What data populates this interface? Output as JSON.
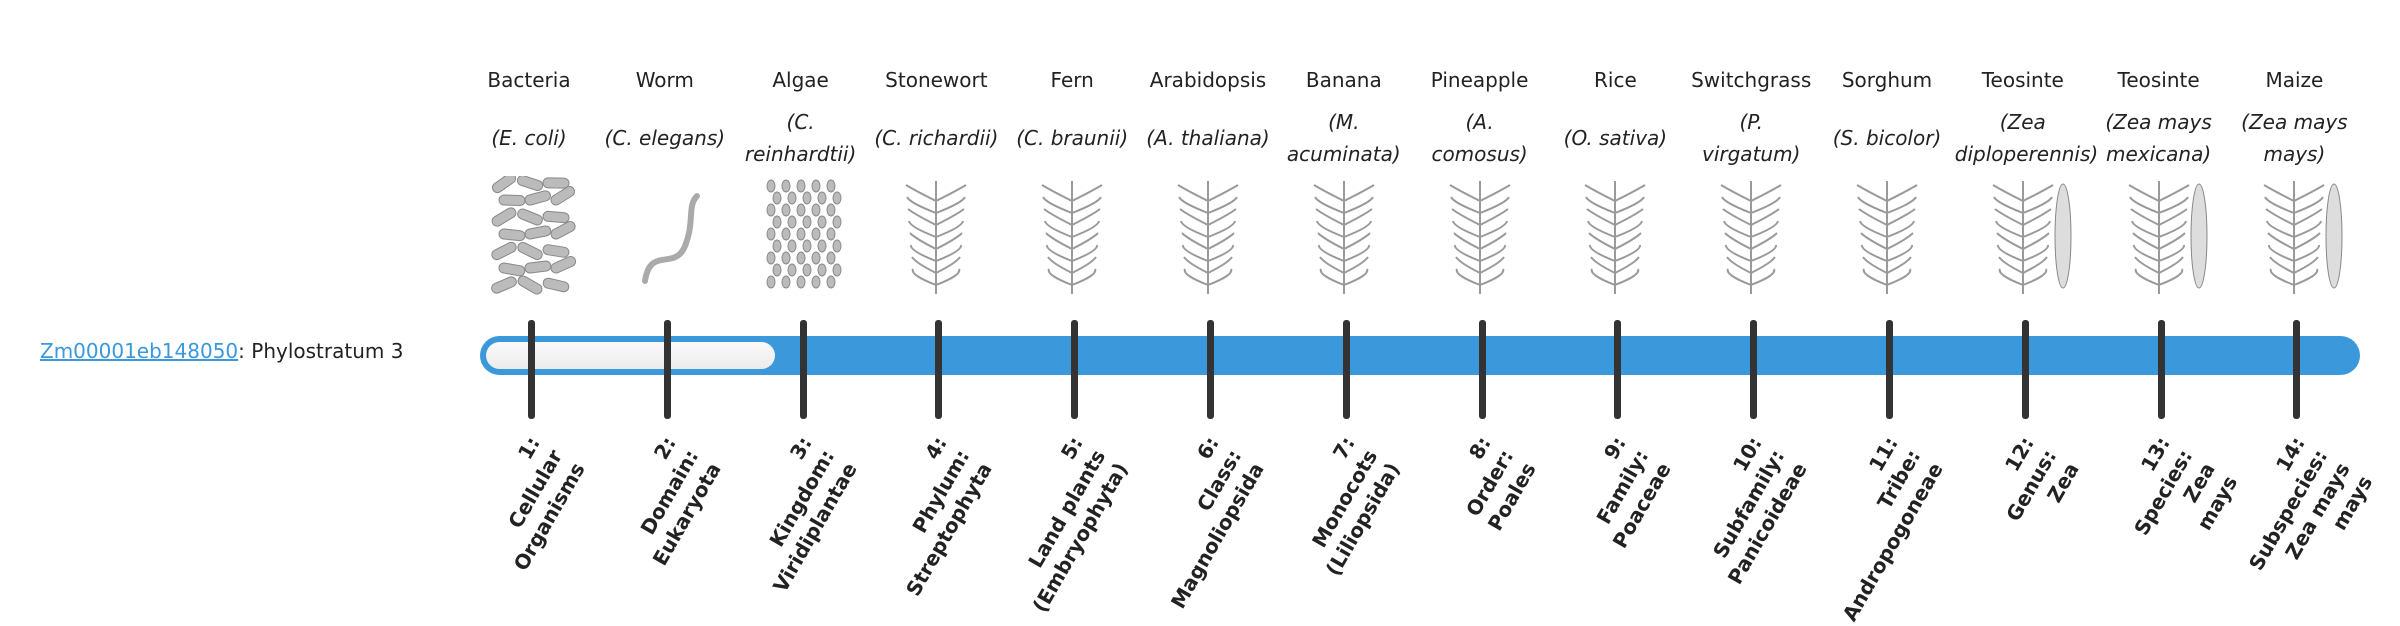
{
  "gene": {
    "id": "Zm00001eb148050",
    "suffix": ": Phylostratum 3"
  },
  "current_stratum": 3,
  "colors": {
    "bar": "#3a98db",
    "tick": "#333333",
    "link": "#3a98db"
  },
  "organisms": [
    {
      "name": "Bacteria",
      "species": [
        "(E. coli)"
      ],
      "icon": "bacteria-illustration",
      "stratum": [
        "1:",
        "Cellular",
        "Organisms"
      ]
    },
    {
      "name": "Worm",
      "species": [
        "(C. elegans)"
      ],
      "icon": "worm-illustration",
      "stratum": [
        "2:",
        "Domain:",
        "Eukaryota"
      ]
    },
    {
      "name": "Algae",
      "species": [
        "(C.",
        "reinhardtii)"
      ],
      "icon": "algae-illustration",
      "stratum": [
        "3:",
        "Kingdom:",
        "Viridiplantae"
      ]
    },
    {
      "name": "Stonewort",
      "species": [
        "(C. richardii)"
      ],
      "icon": "stonewort-illustration",
      "stratum": [
        "4:",
        "Phylum:",
        "Streptophyta"
      ]
    },
    {
      "name": "Fern",
      "species": [
        "(C. braunii)"
      ],
      "icon": "fern-illustration",
      "stratum": [
        "5:",
        "Land plants",
        "(Embryophyta)"
      ]
    },
    {
      "name": "Arabidopsis",
      "species": [
        "(A. thaliana)"
      ],
      "icon": "arabidopsis-illustration",
      "stratum": [
        "6:",
        "Class:",
        "Magnoliopsida"
      ]
    },
    {
      "name": "Banana",
      "species": [
        "(M.",
        "acuminata)"
      ],
      "icon": "banana-illustration",
      "stratum": [
        "7:",
        "Monocots",
        "(Liliopsida)"
      ]
    },
    {
      "name": "Pineapple",
      "species": [
        "(A.",
        "comosus)"
      ],
      "icon": "pineapple-illustration",
      "stratum": [
        "8:",
        "Order:",
        "Poales"
      ]
    },
    {
      "name": "Rice",
      "species": [
        "(O. sativa)"
      ],
      "icon": "rice-illustration",
      "stratum": [
        "9:",
        "Family:",
        "Poaceae"
      ]
    },
    {
      "name": "Switchgrass",
      "species": [
        "(P.",
        "virgatum)"
      ],
      "icon": "switchgrass-illustration",
      "stratum": [
        "10:",
        "Subfamily:",
        "Panicoideae"
      ]
    },
    {
      "name": "Sorghum",
      "species": [
        "(S. bicolor)"
      ],
      "icon": "sorghum-illustration",
      "stratum": [
        "11:",
        "Tribe:",
        "Andropogoneae"
      ]
    },
    {
      "name": "Teosinte",
      "species": [
        "(Zea",
        "diploperennis)"
      ],
      "icon": "teosinte-illustration",
      "stratum": [
        "12:",
        "Genus:",
        "Zea"
      ]
    },
    {
      "name": "Teosinte",
      "species": [
        "(Zea mays",
        "mexicana)"
      ],
      "icon": "teosinte-mexicana-illustration",
      "stratum": [
        "13:",
        "Species:",
        "Zea",
        "mays"
      ]
    },
    {
      "name": "Maize",
      "species": [
        "(Zea mays",
        "mays)"
      ],
      "icon": "maize-illustration",
      "stratum": [
        "14:",
        "Subspecies:",
        "Zea mays",
        "mays"
      ]
    }
  ]
}
